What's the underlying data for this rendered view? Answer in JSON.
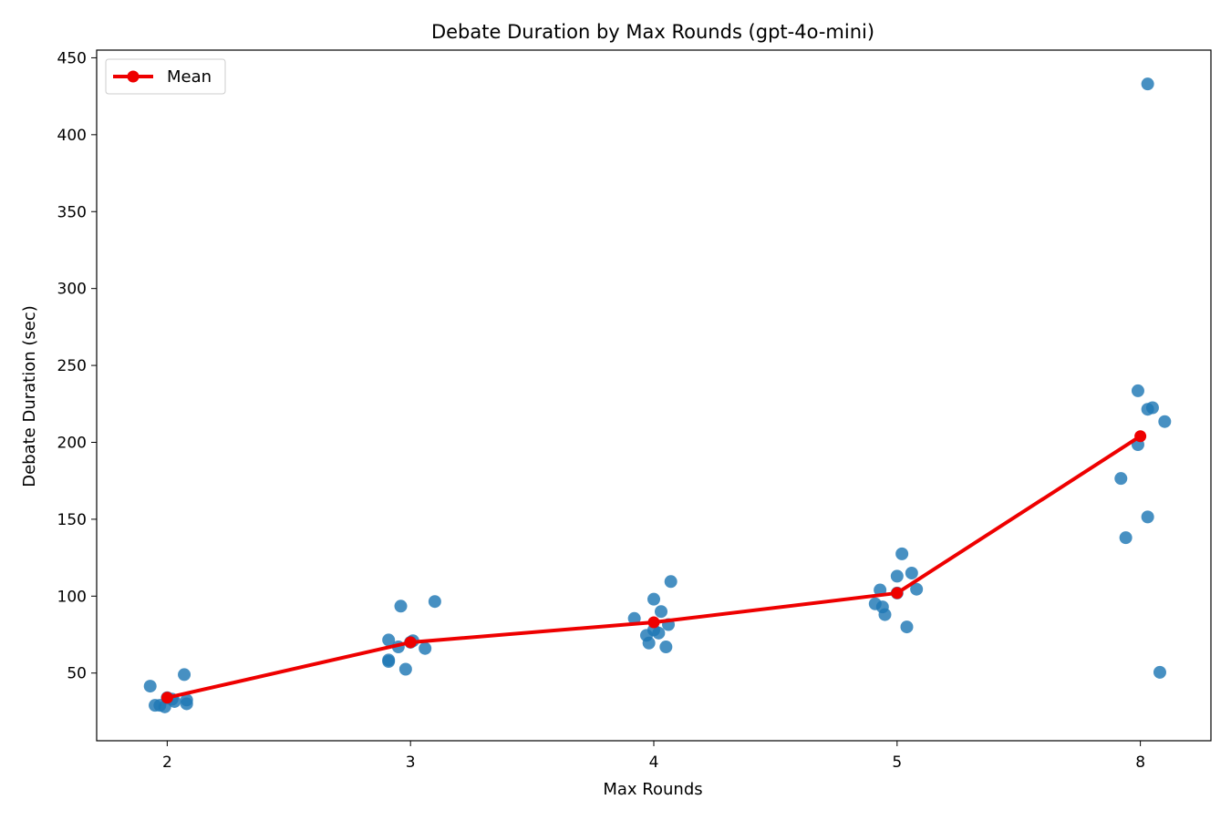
{
  "chart_data": {
    "type": "scatter",
    "title": "Debate Duration by Max Rounds (gpt-4o-mini)",
    "xlabel": "Max Rounds",
    "ylabel": "Debate Duration (sec)",
    "categories": [
      "2",
      "3",
      "4",
      "5",
      "8"
    ],
    "xlim": [
      -0.29,
      4.29
    ],
    "ylim": [
      6,
      455
    ],
    "y_ticks": [
      50,
      100,
      150,
      200,
      250,
      300,
      350,
      400,
      450
    ],
    "grid": false,
    "legend_position": "top-left",
    "colors": {
      "points": "#1f77b4",
      "mean": "#ee0000"
    },
    "series": [
      {
        "kind": "points",
        "groups": [
          {
            "category": "2",
            "points": [
              [
                -0.07,
                41.5
              ],
              [
                -0.05,
                29.0
              ],
              [
                -0.03,
                29.0
              ],
              [
                -0.01,
                28.0
              ],
              [
                0.0,
                34.0
              ],
              [
                0.02,
                33.0
              ],
              [
                0.03,
                31.5
              ],
              [
                0.07,
                49.0
              ],
              [
                0.08,
                32.5
              ],
              [
                0.08,
                30.0
              ]
            ]
          },
          {
            "category": "3",
            "points": [
              [
                -0.09,
                71.5
              ],
              [
                -0.09,
                58.5
              ],
              [
                -0.09,
                57.5
              ],
              [
                -0.05,
                67.0
              ],
              [
                -0.04,
                93.5
              ],
              [
                -0.02,
                52.5
              ],
              [
                0.01,
                71.0
              ],
              [
                0.06,
                66.0
              ],
              [
                0.1,
                96.5
              ],
              [
                0.0,
                70.0
              ]
            ]
          },
          {
            "category": "4",
            "points": [
              [
                -0.08,
                85.5
              ],
              [
                -0.03,
                74.5
              ],
              [
                -0.02,
                69.5
              ],
              [
                0.0,
                98.0
              ],
              [
                0.02,
                76.0
              ],
              [
                0.03,
                90.0
              ],
              [
                0.05,
                67.0
              ],
              [
                0.06,
                81.5
              ],
              [
                0.07,
                109.5
              ],
              [
                0.0,
                78.0
              ]
            ]
          },
          {
            "category": "5",
            "points": [
              [
                -0.09,
                95.0
              ],
              [
                -0.07,
                104.0
              ],
              [
                -0.06,
                93.0
              ],
              [
                -0.05,
                88.0
              ],
              [
                0.0,
                113.0
              ],
              [
                0.0,
                102.0
              ],
              [
                0.02,
                127.5
              ],
              [
                0.04,
                80.0
              ],
              [
                0.06,
                115.0
              ],
              [
                0.08,
                104.5
              ]
            ]
          },
          {
            "category": "8",
            "points": [
              [
                -0.08,
                176.5
              ],
              [
                -0.06,
                138.0
              ],
              [
                -0.01,
                198.5
              ],
              [
                -0.01,
                233.5
              ],
              [
                0.03,
                433.0
              ],
              [
                0.03,
                221.5
              ],
              [
                0.03,
                151.5
              ],
              [
                0.05,
                222.5
              ],
              [
                0.08,
                50.5
              ],
              [
                0.1,
                213.5
              ]
            ]
          }
        ]
      },
      {
        "kind": "line",
        "name": "Mean",
        "values": [
          34,
          70,
          83,
          102,
          204
        ]
      }
    ]
  }
}
